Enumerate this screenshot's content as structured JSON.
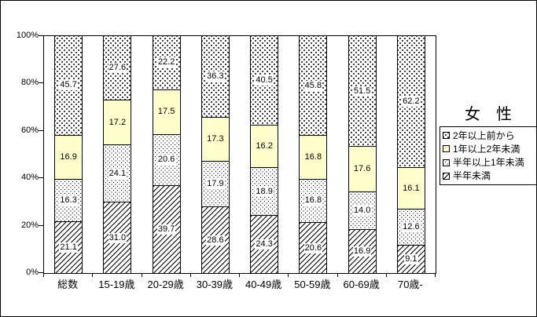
{
  "figure": {
    "background": "#FFFFFF",
    "border_color": "#000000",
    "label_background": "#FFFFFF"
  },
  "chart_data": {
    "type": "bar",
    "subtype": "stacked-100-percent",
    "title": "女　性",
    "categories": [
      "総数",
      "15-19歳",
      "20-29歳",
      "30-39歳",
      "40-49歳",
      "50-59歳",
      "60-69歳",
      "70歳-"
    ],
    "series": [
      {
        "name": "半年未満",
        "pattern": "hatch",
        "color": "#FFFFFF",
        "values": [
          21.1,
          31.0,
          39.7,
          28.6,
          24.3,
          20.6,
          16.9,
          9.1
        ]
      },
      {
        "name": "半年以上1年未満",
        "pattern": "dots-fine",
        "color": "#FFFFFF",
        "values": [
          16.3,
          24.1,
          20.6,
          17.9,
          18.9,
          16.8,
          14.0,
          12.6
        ]
      },
      {
        "name": "1年以上2年未満",
        "pattern": "solid-yellow",
        "color": "#FFFFCC",
        "values": [
          16.9,
          17.2,
          17.5,
          17.3,
          16.2,
          16.8,
          17.6,
          16.1
        ]
      },
      {
        "name": "2年以上前から",
        "pattern": "dots-coarse",
        "color": "#FFFFFF",
        "values": [
          45.7,
          27.6,
          22.2,
          36.3,
          40.5,
          45.8,
          51.5,
          62.2
        ]
      }
    ],
    "y_axis": {
      "min": 0,
      "max": 100,
      "unit": "%",
      "ticks": [
        "0%",
        "20%",
        "40%",
        "60%",
        "80%",
        "100%"
      ],
      "tick_values": [
        0,
        20,
        40,
        60,
        80,
        100
      ]
    },
    "grid": false,
    "data_labels": true,
    "legend": {
      "position": "right",
      "items": [
        {
          "label": "2年以上前から",
          "pattern": "dots-coarse"
        },
        {
          "label": "1年以上2年未満",
          "pattern": "solid-yellow"
        },
        {
          "label": "半年以上1年未満",
          "pattern": "dots-fine"
        },
        {
          "label": "半年未満",
          "pattern": "hatch"
        }
      ]
    }
  }
}
